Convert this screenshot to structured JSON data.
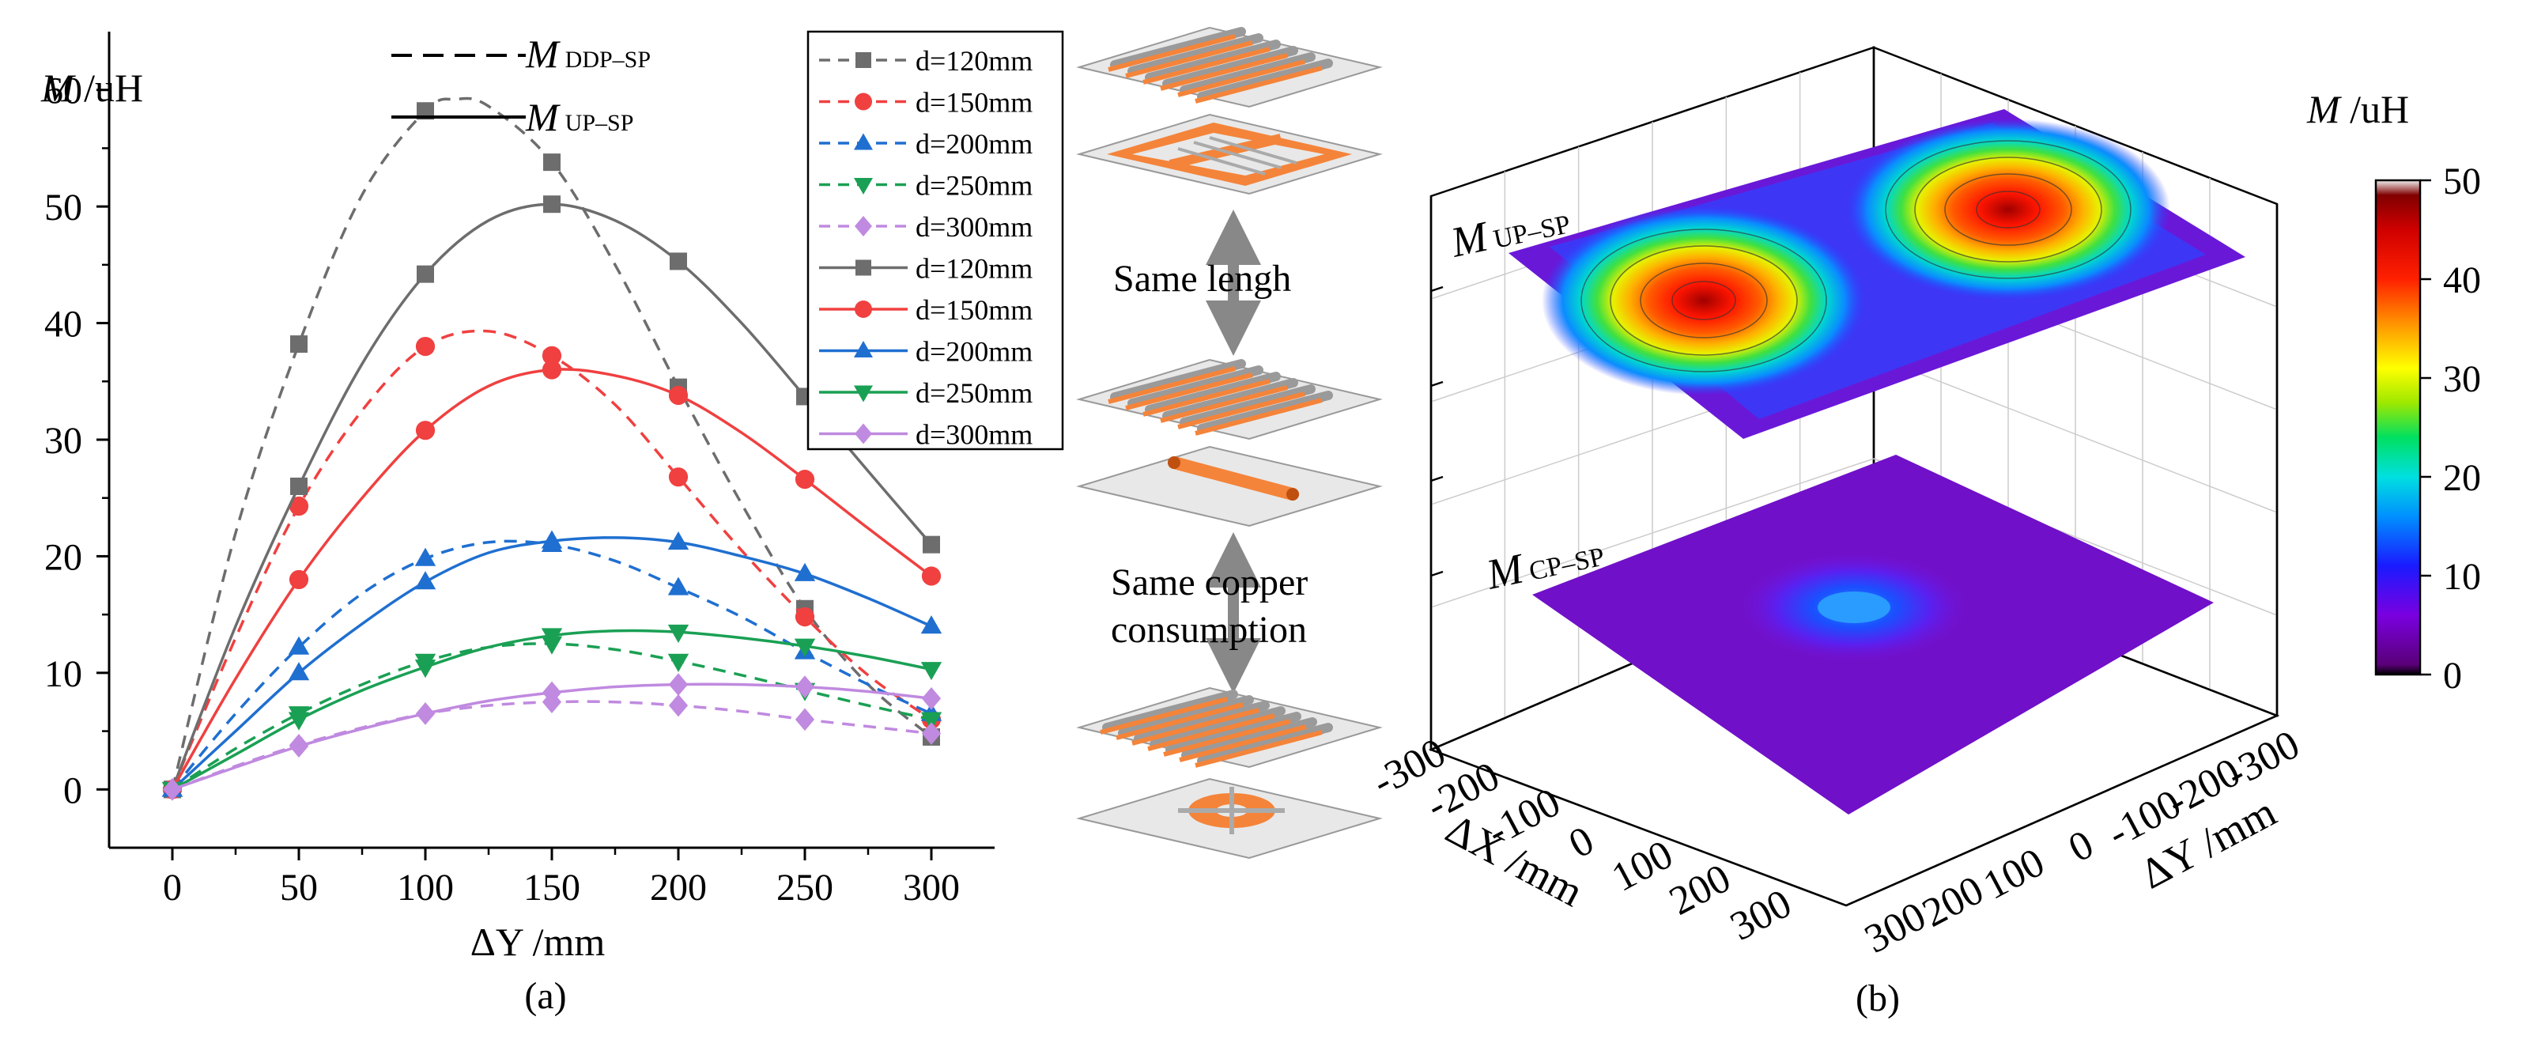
{
  "chart_data": [
    {
      "type": "line",
      "panel_label": "(a)",
      "ylabel_symbol": "M",
      "ylabel_unit": " /uH",
      "xlabel": "ΔY /mm",
      "xlim": [
        -25,
        325
      ],
      "ylim": [
        -5,
        65
      ],
      "x_ticks": [
        0,
        50,
        100,
        150,
        200,
        250,
        300
      ],
      "y_ticks": [
        0,
        10,
        20,
        30,
        40,
        50,
        60
      ],
      "line_style_legend": [
        {
          "symbol": "M",
          "subscript": "DDP–SP",
          "dash": true
        },
        {
          "symbol": "M",
          "subscript": "UP–SP",
          "dash": false
        }
      ],
      "legend_labels": [
        "d=120mm",
        "d=150mm",
        "d=200mm",
        "d=250mm",
        "d=300mm",
        "d=120mm",
        "d=150mm",
        "d=200mm",
        "d=250mm",
        "d=300mm"
      ],
      "x": [
        0,
        50,
        100,
        150,
        200,
        250,
        300
      ],
      "series": [
        {
          "name": "DDP d=120mm",
          "dash": true,
          "color": "#6d6d6d",
          "marker": "square",
          "values": [
            0,
            38.2,
            58.2,
            53.8,
            34.5,
            15.5,
            4.5
          ],
          "curve": [
            [
              0,
              0
            ],
            [
              25,
              22
            ],
            [
              50,
              38.2
            ],
            [
              75,
              51
            ],
            [
              100,
              58.2
            ],
            [
              112,
              59.2
            ],
            [
              125,
              58.6
            ],
            [
              150,
              53.8
            ],
            [
              175,
              45
            ],
            [
              200,
              34.5
            ],
            [
              225,
              24.5
            ],
            [
              250,
              15.5
            ],
            [
              275,
              9
            ],
            [
              300,
              4.5
            ]
          ]
        },
        {
          "name": "DDP d=150mm",
          "dash": true,
          "color": "#f04040",
          "marker": "circle",
          "values": [
            0,
            24.3,
            38,
            37.2,
            26.8,
            14.8,
            6
          ],
          "curve": [
            [
              0,
              0
            ],
            [
              25,
              13
            ],
            [
              50,
              24.3
            ],
            [
              75,
              32.5
            ],
            [
              100,
              38
            ],
            [
              125,
              39.3
            ],
            [
              150,
              37.2
            ],
            [
              175,
              33
            ],
            [
              200,
              26.8
            ],
            [
              225,
              20.5
            ],
            [
              250,
              14.8
            ],
            [
              275,
              9.8
            ],
            [
              300,
              6
            ]
          ]
        },
        {
          "name": "DDP d=200mm",
          "dash": true,
          "color": "#1f6fd0",
          "marker": "triangle",
          "values": [
            0,
            12.2,
            19.8,
            21,
            17.3,
            11.8,
            6.5
          ],
          "curve": [
            [
              0,
              0
            ],
            [
              25,
              6.5
            ],
            [
              50,
              12.2
            ],
            [
              75,
              16.8
            ],
            [
              100,
              19.8
            ],
            [
              125,
              21.2
            ],
            [
              150,
              21
            ],
            [
              175,
              19.6
            ],
            [
              200,
              17.3
            ],
            [
              225,
              14.8
            ],
            [
              250,
              11.8
            ],
            [
              275,
              9
            ],
            [
              300,
              6.5
            ]
          ]
        },
        {
          "name": "DDP d=250mm",
          "dash": true,
          "color": "#1aa054",
          "marker": "tri-down",
          "values": [
            0,
            6.5,
            11,
            12.5,
            11,
            8.5,
            6
          ],
          "curve": [
            [
              0,
              0
            ],
            [
              25,
              3.5
            ],
            [
              50,
              6.5
            ],
            [
              75,
              9
            ],
            [
              100,
              11
            ],
            [
              125,
              12.2
            ],
            [
              150,
              12.5
            ],
            [
              175,
              12
            ],
            [
              200,
              11
            ],
            [
              225,
              9.8
            ],
            [
              250,
              8.5
            ],
            [
              275,
              7.2
            ],
            [
              300,
              6
            ]
          ]
        },
        {
          "name": "DDP d=300mm",
          "dash": true,
          "color": "#c08ae0",
          "marker": "diamond",
          "values": [
            0,
            3.8,
            6.5,
            7.5,
            7.2,
            6,
            4.8
          ],
          "curve": [
            [
              0,
              0
            ],
            [
              25,
              2
            ],
            [
              50,
              3.8
            ],
            [
              75,
              5.3
            ],
            [
              100,
              6.5
            ],
            [
              125,
              7.2
            ],
            [
              150,
              7.5
            ],
            [
              175,
              7.5
            ],
            [
              200,
              7.2
            ],
            [
              225,
              6.7
            ],
            [
              250,
              6
            ],
            [
              275,
              5.4
            ],
            [
              300,
              4.8
            ]
          ]
        },
        {
          "name": "UP d=120mm",
          "dash": false,
          "color": "#6d6d6d",
          "marker": "square",
          "values": [
            0,
            26,
            44.2,
            50.2,
            45.3,
            33.7,
            21
          ],
          "curve": [
            [
              0,
              0
            ],
            [
              25,
              14
            ],
            [
              50,
              26
            ],
            [
              75,
              36.5
            ],
            [
              100,
              44.2
            ],
            [
              125,
              48.8
            ],
            [
              150,
              50.2
            ],
            [
              175,
              48.8
            ],
            [
              200,
              45.3
            ],
            [
              225,
              40
            ],
            [
              250,
              33.7
            ],
            [
              275,
              27.3
            ],
            [
              300,
              21
            ]
          ]
        },
        {
          "name": "UP d=150mm",
          "dash": false,
          "color": "#f04040",
          "marker": "circle",
          "values": [
            0,
            18,
            30.8,
            36,
            33.8,
            26.6,
            18.3
          ],
          "curve": [
            [
              0,
              0
            ],
            [
              25,
              9.5
            ],
            [
              50,
              18
            ],
            [
              75,
              25
            ],
            [
              100,
              30.8
            ],
            [
              125,
              34.6
            ],
            [
              150,
              36
            ],
            [
              175,
              35.5
            ],
            [
              200,
              33.8
            ],
            [
              225,
              30.6
            ],
            [
              250,
              26.6
            ],
            [
              275,
              22.4
            ],
            [
              300,
              18.3
            ]
          ]
        },
        {
          "name": "UP d=200mm",
          "dash": false,
          "color": "#1f6fd0",
          "marker": "triangle",
          "values": [
            0,
            10,
            17.8,
            21.3,
            21.2,
            18.5,
            14
          ],
          "curve": [
            [
              0,
              0
            ],
            [
              25,
              5
            ],
            [
              50,
              10
            ],
            [
              75,
              14.2
            ],
            [
              100,
              17.8
            ],
            [
              125,
              20.3
            ],
            [
              150,
              21.3
            ],
            [
              175,
              21.6
            ],
            [
              200,
              21.2
            ],
            [
              225,
              20
            ],
            [
              250,
              18.5
            ],
            [
              275,
              16.4
            ],
            [
              300,
              14
            ]
          ]
        },
        {
          "name": "UP d=250mm",
          "dash": false,
          "color": "#1aa054",
          "marker": "tri-down",
          "values": [
            0,
            6,
            10.5,
            13.2,
            13.5,
            12.3,
            10.3
          ],
          "curve": [
            [
              0,
              0
            ],
            [
              25,
              3
            ],
            [
              50,
              6
            ],
            [
              75,
              8.5
            ],
            [
              100,
              10.5
            ],
            [
              125,
              12.2
            ],
            [
              150,
              13.2
            ],
            [
              175,
              13.6
            ],
            [
              200,
              13.5
            ],
            [
              225,
              13
            ],
            [
              250,
              12.3
            ],
            [
              275,
              11.4
            ],
            [
              300,
              10.3
            ]
          ]
        },
        {
          "name": "UP d=300mm",
          "dash": false,
          "color": "#c08ae0",
          "marker": "diamond",
          "values": [
            0,
            3.7,
            6.5,
            8.3,
            9,
            8.8,
            7.8
          ],
          "curve": [
            [
              0,
              0
            ],
            [
              25,
              1.9
            ],
            [
              50,
              3.7
            ],
            [
              75,
              5.2
            ],
            [
              100,
              6.5
            ],
            [
              125,
              7.6
            ],
            [
              150,
              8.3
            ],
            [
              175,
              8.8
            ],
            [
              200,
              9
            ],
            [
              225,
              9
            ],
            [
              250,
              8.8
            ],
            [
              275,
              8.4
            ],
            [
              300,
              7.8
            ]
          ]
        }
      ]
    },
    {
      "type": "heatmap",
      "panel_label": "(b)",
      "xlabel": "ΔX /mm",
      "ylabel": "ΔY /mm",
      "x_ticks": [
        -300,
        -200,
        -100,
        0,
        100,
        200,
        300
      ],
      "y_ticks": [
        -300,
        -200,
        -100,
        0,
        100,
        200,
        300
      ],
      "colorbar_title_symbol": "M",
      "colorbar_title_unit": " /uH",
      "colorbar_ticks": [
        0,
        10,
        20,
        30,
        40,
        50
      ],
      "zlim": [
        0,
        50
      ],
      "surfaces": [
        {
          "symbol": "M",
          "subscript": "UP–SP",
          "peaks": [
            {
              "x": 0,
              "y": -150,
              "value": 50.2
            },
            {
              "x": 0,
              "y": 150,
              "value": 50.2
            }
          ],
          "min_value": 0
        },
        {
          "symbol": "M",
          "subscript": "CP–SP",
          "peaks": [
            {
              "x": 0,
              "y": 0,
              "value": 13
            }
          ],
          "min_value": 0
        }
      ]
    }
  ],
  "schematic": {
    "label_same_length": "Same lengh",
    "label_same_copper_line1": "Same copper",
    "label_same_copper_line2": "consumption"
  },
  "colors": {
    "axis": "#000000",
    "coil_orange": "#f4843a",
    "coil_gray": "#9a9a9a",
    "plate": "#e6e6e6",
    "arrow": "#888888"
  }
}
